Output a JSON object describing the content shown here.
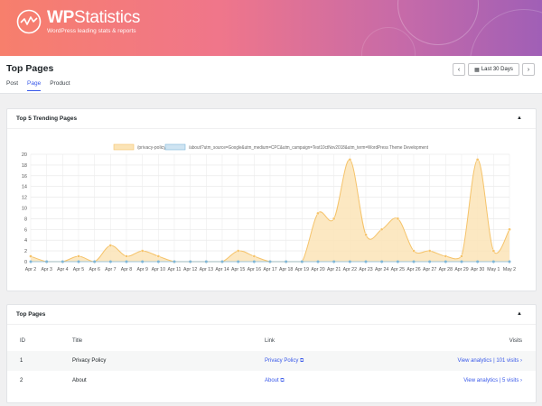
{
  "brand": {
    "name_bold": "WP",
    "name_rest": "Statistics",
    "tagline": "WordPress leading stats & reports"
  },
  "page": {
    "title": "Top Pages",
    "tabs": [
      {
        "label": "Post"
      },
      {
        "label": "Page"
      },
      {
        "label": "Product"
      }
    ],
    "active_tab": 1
  },
  "date_range": {
    "label": "Last 30 Days",
    "prev": "‹",
    "next": "›"
  },
  "trending_card": {
    "title": "Top 5 Trending Pages"
  },
  "colors": {
    "series1": "#f5c36a",
    "series1_fill": "#fbe4b7",
    "series2": "#7fb7d9",
    "accent": "#3858e9"
  },
  "chart_data": {
    "type": "area",
    "title": "",
    "xlabel": "",
    "ylabel": "",
    "ylim": [
      0,
      20
    ],
    "yticks": [
      0,
      2,
      4,
      6,
      8,
      10,
      12,
      14,
      16,
      18,
      20
    ],
    "legend": "top",
    "grid": true,
    "categories": [
      "Apr 2",
      "Apr 3",
      "Apr 4",
      "Apr 5",
      "Apr 6",
      "Apr 7",
      "Apr 8",
      "Apr 9",
      "Apr 10",
      "Apr 11",
      "Apr 12",
      "Apr 13",
      "Apr 14",
      "Apr 15",
      "Apr 16",
      "Apr 17",
      "Apr 18",
      "Apr 19",
      "Apr 20",
      "Apr 21",
      "Apr 22",
      "Apr 23",
      "Apr 24",
      "Apr 25",
      "Apr 26",
      "Apr 27",
      "Apr 28",
      "Apr 29",
      "Apr 30",
      "May 1",
      "May 2"
    ],
    "series": [
      {
        "name": "/privacy-policy/",
        "values": [
          1,
          0,
          0,
          1,
          0,
          3,
          1,
          2,
          1,
          0,
          0,
          0,
          0,
          2,
          1,
          0,
          0,
          0,
          9,
          8,
          19,
          5,
          6,
          8,
          2,
          2,
          1,
          1,
          19,
          2,
          6
        ]
      },
      {
        "name": "/about/?utm_source=Google&utm_medium=CPC&utm_campaign=Test10ctNov2018&utm_term=WordPress Theme Development",
        "values": [
          0,
          0,
          0,
          0,
          0,
          0,
          0,
          0,
          0,
          0,
          0,
          0,
          0,
          0,
          0,
          0,
          0,
          0,
          0,
          0,
          0,
          0,
          0,
          0,
          0,
          0,
          0,
          0,
          0,
          0,
          0
        ]
      }
    ]
  },
  "top_pages": {
    "title": "Top Pages",
    "columns": {
      "id": "ID",
      "title": "Title",
      "link": "Link",
      "visits": "Visits"
    },
    "rows": [
      {
        "id": "1",
        "title": "Privacy Policy",
        "link": "Privacy Policy",
        "visits": "View analytics | 101 visits"
      },
      {
        "id": "2",
        "title": "About",
        "link": "About",
        "visits": "View analytics | 5 visits"
      }
    ]
  }
}
